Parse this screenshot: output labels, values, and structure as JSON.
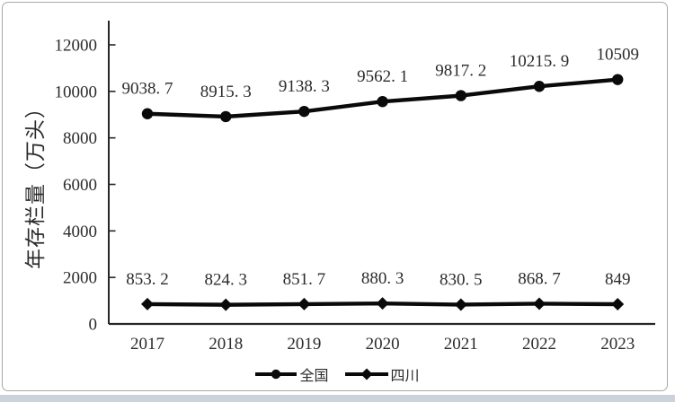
{
  "figure": {
    "card_background": "#ffffff",
    "card_border_color": "#a9a9a9",
    "page_bottom_strip_color": "#ccd2d9",
    "axis_color": "#262626",
    "text_color": "#2b2b2b",
    "line_color": "#0a0a0a"
  },
  "chart_data": {
    "type": "line",
    "title": "",
    "xlabel": "",
    "ylabel": "年存栏量（万头）",
    "categories": [
      "2017",
      "2018",
      "2019",
      "2020",
      "2021",
      "2022",
      "2023"
    ],
    "series": [
      {
        "name": "全国",
        "marker": "circle",
        "color": "#0a0a0a",
        "values": [
          9038.7,
          8915.3,
          9138.3,
          9562.1,
          9817.2,
          10215.9,
          10509
        ],
        "labels": [
          "9038. 7",
          "8915. 3",
          "9138. 3",
          "9562. 1",
          "9817. 2",
          "10215. 9",
          "10509"
        ]
      },
      {
        "name": "四川",
        "marker": "diamond",
        "color": "#0a0a0a",
        "values": [
          853.2,
          824.3,
          851.7,
          880.3,
          830.5,
          868.7,
          849
        ],
        "labels": [
          "853. 2",
          "824. 3",
          "851. 7",
          "880. 3",
          "830. 5",
          "868. 7",
          "849"
        ]
      }
    ],
    "yticks": [
      0,
      2000,
      4000,
      6000,
      8000,
      10000,
      12000
    ],
    "ytick_labels": [
      "0",
      "2000",
      "4000",
      "6000",
      "8000",
      "10000",
      "12000"
    ],
    "ylim": [
      0,
      13000
    ],
    "grid": false,
    "legend_position": "bottom"
  }
}
